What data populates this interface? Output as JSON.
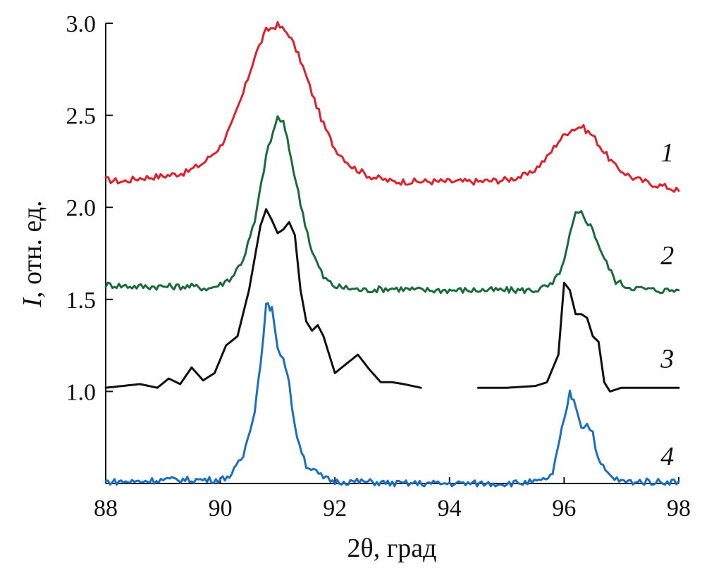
{
  "chart_data": {
    "type": "line",
    "title": "",
    "xlabel": "2θ, град",
    "ylabel_italic": "I",
    "ylabel_rest": ", отн. ед.",
    "xlim": [
      88,
      98
    ],
    "ylim": [
      0.5,
      3.0
    ],
    "xticks": [
      88,
      90,
      92,
      94,
      96,
      98
    ],
    "xtick_labels": [
      "88",
      "90",
      "92",
      "94",
      "96",
      "98"
    ],
    "yticks": [
      1.0,
      1.5,
      2.0,
      2.5,
      3.0
    ],
    "ytick_labels": [
      "1.0",
      "1.5",
      "2.0",
      "2.5",
      "3.0"
    ],
    "series": [
      {
        "name": "1",
        "label": "1",
        "color": "#e0202a",
        "label_at": [
          97.8,
          2.25
        ],
        "points": [
          [
            88.0,
            2.15
          ],
          [
            88.3,
            2.14
          ],
          [
            88.6,
            2.16
          ],
          [
            89.0,
            2.17
          ],
          [
            89.4,
            2.19
          ],
          [
            89.7,
            2.24
          ],
          [
            90.0,
            2.33
          ],
          [
            90.2,
            2.45
          ],
          [
            90.4,
            2.62
          ],
          [
            90.6,
            2.82
          ],
          [
            90.8,
            2.96
          ],
          [
            91.0,
            2.99
          ],
          [
            91.2,
            2.94
          ],
          [
            91.4,
            2.8
          ],
          [
            91.6,
            2.62
          ],
          [
            91.8,
            2.45
          ],
          [
            92.0,
            2.32
          ],
          [
            92.3,
            2.22
          ],
          [
            92.6,
            2.17
          ],
          [
            93.0,
            2.14
          ],
          [
            93.5,
            2.14
          ],
          [
            94.0,
            2.14
          ],
          [
            94.5,
            2.14
          ],
          [
            95.0,
            2.15
          ],
          [
            95.4,
            2.18
          ],
          [
            95.7,
            2.27
          ],
          [
            95.9,
            2.36
          ],
          [
            96.1,
            2.42
          ],
          [
            96.3,
            2.44
          ],
          [
            96.5,
            2.39
          ],
          [
            96.7,
            2.3
          ],
          [
            96.9,
            2.22
          ],
          [
            97.2,
            2.16
          ],
          [
            97.5,
            2.13
          ],
          [
            97.8,
            2.11
          ],
          [
            98.0,
            2.09
          ]
        ]
      },
      {
        "name": "2",
        "label": "2",
        "color": "#1a6b3a",
        "label_at": [
          97.8,
          1.69
        ],
        "points": [
          [
            88.0,
            1.58
          ],
          [
            88.5,
            1.57
          ],
          [
            89.0,
            1.57
          ],
          [
            89.5,
            1.57
          ],
          [
            89.8,
            1.56
          ],
          [
            90.0,
            1.58
          ],
          [
            90.2,
            1.62
          ],
          [
            90.4,
            1.72
          ],
          [
            90.6,
            1.92
          ],
          [
            90.8,
            2.28
          ],
          [
            91.0,
            2.49
          ],
          [
            91.1,
            2.46
          ],
          [
            91.2,
            2.32
          ],
          [
            91.4,
            2.02
          ],
          [
            91.6,
            1.76
          ],
          [
            91.8,
            1.62
          ],
          [
            92.0,
            1.57
          ],
          [
            92.5,
            1.55
          ],
          [
            93.0,
            1.56
          ],
          [
            93.5,
            1.55
          ],
          [
            94.0,
            1.55
          ],
          [
            94.5,
            1.55
          ],
          [
            95.0,
            1.55
          ],
          [
            95.5,
            1.55
          ],
          [
            95.8,
            1.58
          ],
          [
            96.0,
            1.7
          ],
          [
            96.1,
            1.85
          ],
          [
            96.2,
            1.96
          ],
          [
            96.3,
            1.97
          ],
          [
            96.5,
            1.88
          ],
          [
            96.7,
            1.72
          ],
          [
            96.9,
            1.6
          ],
          [
            97.1,
            1.57
          ],
          [
            97.3,
            1.56
          ],
          [
            97.6,
            1.55
          ],
          [
            98.0,
            1.55
          ]
        ]
      },
      {
        "name": "3",
        "label": "3",
        "color": "#111111",
        "label_at": [
          97.8,
          1.13
        ],
        "segments": [
          [
            [
              88.0,
              1.02
            ],
            [
              88.3,
              1.03
            ],
            [
              88.6,
              1.04
            ],
            [
              88.9,
              1.02
            ],
            [
              89.1,
              1.07
            ],
            [
              89.3,
              1.04
            ],
            [
              89.5,
              1.13
            ],
            [
              89.7,
              1.06
            ],
            [
              89.9,
              1.1
            ],
            [
              90.1,
              1.25
            ],
            [
              90.3,
              1.3
            ],
            [
              90.5,
              1.55
            ],
            [
              90.7,
              1.9
            ],
            [
              90.8,
              1.99
            ],
            [
              90.9,
              1.93
            ],
            [
              91.0,
              1.86
            ],
            [
              91.1,
              1.88
            ],
            [
              91.2,
              1.92
            ],
            [
              91.3,
              1.85
            ],
            [
              91.4,
              1.55
            ],
            [
              91.5,
              1.38
            ],
            [
              91.6,
              1.33
            ],
            [
              91.7,
              1.36
            ],
            [
              91.8,
              1.3
            ],
            [
              92.0,
              1.1
            ],
            [
              92.2,
              1.15
            ],
            [
              92.4,
              1.2
            ],
            [
              92.6,
              1.12
            ],
            [
              92.8,
              1.05
            ],
            [
              93.0,
              1.05
            ],
            [
              93.2,
              1.04
            ],
            [
              93.5,
              1.02
            ]
          ],
          [
            [
              94.5,
              1.02
            ],
            [
              95.0,
              1.02
            ],
            [
              95.5,
              1.03
            ],
            [
              95.7,
              1.05
            ],
            [
              95.9,
              1.2
            ],
            [
              96.0,
              1.59
            ],
            [
              96.1,
              1.55
            ],
            [
              96.2,
              1.42
            ],
            [
              96.3,
              1.42
            ],
            [
              96.4,
              1.4
            ],
            [
              96.5,
              1.3
            ],
            [
              96.6,
              1.27
            ],
            [
              96.7,
              1.05
            ],
            [
              96.8,
              1.0
            ],
            [
              97.0,
              1.02
            ],
            [
              97.5,
              1.02
            ],
            [
              98.0,
              1.02
            ]
          ]
        ]
      },
      {
        "name": "4",
        "label": "4",
        "color": "#1a6fbf",
        "label_at": [
          97.8,
          0.6
        ],
        "points": [
          [
            88.0,
            0.51
          ],
          [
            88.5,
            0.51
          ],
          [
            89.0,
            0.52
          ],
          [
            89.5,
            0.52
          ],
          [
            90.0,
            0.52
          ],
          [
            90.2,
            0.55
          ],
          [
            90.4,
            0.65
          ],
          [
            90.6,
            0.9
          ],
          [
            90.7,
            1.15
          ],
          [
            90.8,
            1.47
          ],
          [
            90.9,
            1.45
          ],
          [
            91.0,
            1.22
          ],
          [
            91.1,
            1.19
          ],
          [
            91.2,
            1.05
          ],
          [
            91.3,
            0.8
          ],
          [
            91.5,
            0.6
          ],
          [
            91.8,
            0.53
          ],
          [
            92.0,
            0.51
          ],
          [
            92.5,
            0.51
          ],
          [
            93.0,
            0.5
          ],
          [
            94.0,
            0.5
          ],
          [
            95.0,
            0.5
          ],
          [
            95.6,
            0.51
          ],
          [
            95.8,
            0.55
          ],
          [
            96.0,
            0.85
          ],
          [
            96.1,
            0.99
          ],
          [
            96.2,
            0.93
          ],
          [
            96.3,
            0.81
          ],
          [
            96.4,
            0.82
          ],
          [
            96.5,
            0.78
          ],
          [
            96.6,
            0.62
          ],
          [
            96.8,
            0.54
          ],
          [
            97.0,
            0.51
          ],
          [
            98.0,
            0.51
          ]
        ]
      }
    ]
  }
}
